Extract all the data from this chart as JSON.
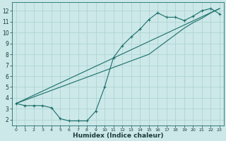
{
  "xlabel": "Humidex (Indice chaleur)",
  "ylabel": "",
  "background_color": "#cce8e8",
  "grid_color": "#aad0d0",
  "line_color": "#1a6e6a",
  "xlim": [
    -0.5,
    23.5
  ],
  "ylim": [
    1.5,
    12.8
  ],
  "yticks": [
    2,
    3,
    4,
    5,
    6,
    7,
    8,
    9,
    10,
    11,
    12
  ],
  "xticks": [
    0,
    1,
    2,
    3,
    4,
    5,
    6,
    7,
    8,
    9,
    10,
    11,
    12,
    13,
    14,
    15,
    16,
    17,
    18,
    19,
    20,
    21,
    22,
    23
  ],
  "curve1_x": [
    0,
    1,
    2,
    3,
    4,
    5,
    6,
    7,
    8,
    9,
    10,
    11,
    12,
    13,
    14,
    15,
    16,
    17,
    18,
    19,
    20,
    21,
    22,
    23
  ],
  "curve1_y": [
    3.5,
    3.3,
    3.3,
    3.3,
    3.1,
    2.1,
    1.9,
    1.9,
    1.9,
    2.8,
    5.0,
    7.7,
    8.8,
    9.6,
    10.3,
    11.2,
    11.8,
    11.4,
    11.4,
    11.1,
    11.5,
    12.0,
    12.2,
    11.7
  ],
  "curve2_x": [
    0,
    23
  ],
  "curve2_y": [
    3.5,
    12.2
  ],
  "curve3_x": [
    0,
    1,
    2,
    3,
    4,
    5,
    6,
    7,
    8,
    9,
    10,
    11,
    12,
    13,
    14,
    15,
    16,
    17,
    18,
    19,
    20,
    21,
    22,
    23
  ],
  "curve3_y": [
    3.5,
    3.8,
    4.1,
    4.4,
    4.7,
    5.0,
    5.3,
    5.6,
    5.9,
    6.2,
    6.5,
    6.8,
    7.1,
    7.4,
    7.7,
    8.0,
    8.6,
    9.2,
    9.8,
    10.4,
    10.9,
    11.3,
    11.8,
    12.2
  ],
  "figsize": [
    3.2,
    2.0
  ],
  "dpi": 100
}
